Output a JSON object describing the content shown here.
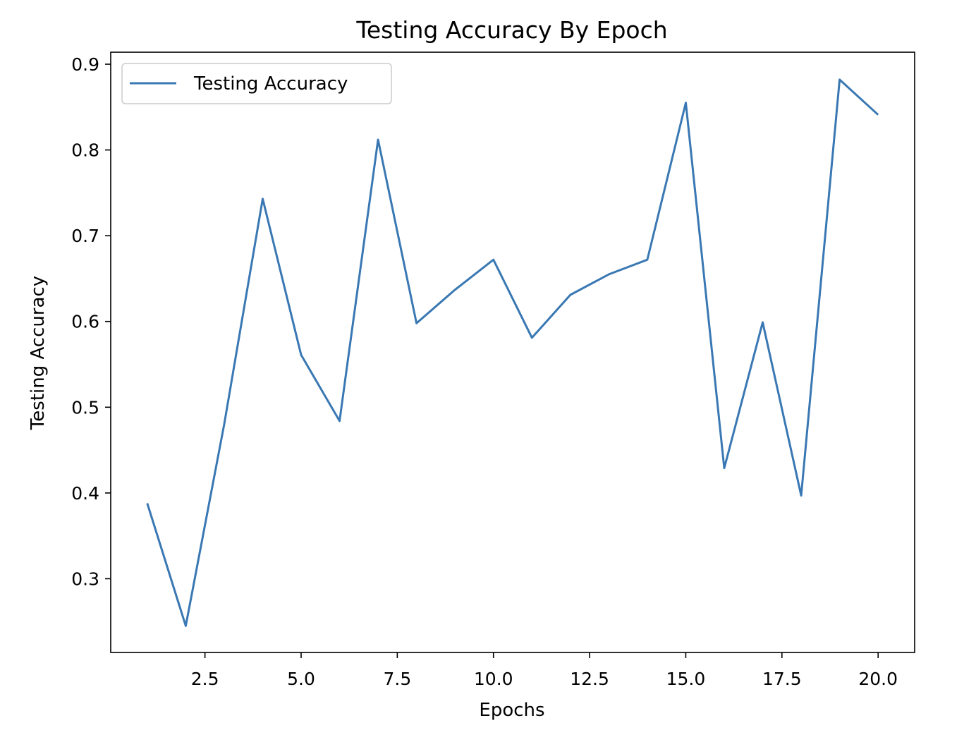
{
  "chart_data": {
    "type": "line",
    "title": "Testing Accuracy By Epoch",
    "xlabel": "Epochs",
    "ylabel": "Testing Accuracy",
    "xlim": [
      0.05,
      20.95
    ],
    "ylim": [
      0.214,
      0.914
    ],
    "xticks": [
      2.5,
      5.0,
      7.5,
      10.0,
      12.5,
      15.0,
      17.5,
      20.0
    ],
    "xtick_labels": [
      "2.5",
      "5.0",
      "7.5",
      "10.0",
      "12.5",
      "15.0",
      "17.5",
      "20.0"
    ],
    "yticks": [
      0.3,
      0.4,
      0.5,
      0.6,
      0.7,
      0.8,
      0.9
    ],
    "ytick_labels": [
      "0.3",
      "0.4",
      "0.5",
      "0.6",
      "0.7",
      "0.8",
      "0.9"
    ],
    "grid": false,
    "legend_position": "top-left",
    "series": [
      {
        "name": "Testing Accuracy",
        "color": "#3a78b3",
        "x": [
          1,
          2,
          3,
          4,
          5,
          6,
          7,
          8,
          9,
          10,
          11,
          12,
          13,
          14,
          15,
          16,
          17,
          18,
          19,
          20
        ],
        "y": [
          0.388,
          0.245,
          0.48,
          0.743,
          0.561,
          0.484,
          0.812,
          0.598,
          0.637,
          0.672,
          0.581,
          0.631,
          0.655,
          0.672,
          0.855,
          0.429,
          0.599,
          0.397,
          0.882,
          0.841
        ]
      }
    ]
  }
}
